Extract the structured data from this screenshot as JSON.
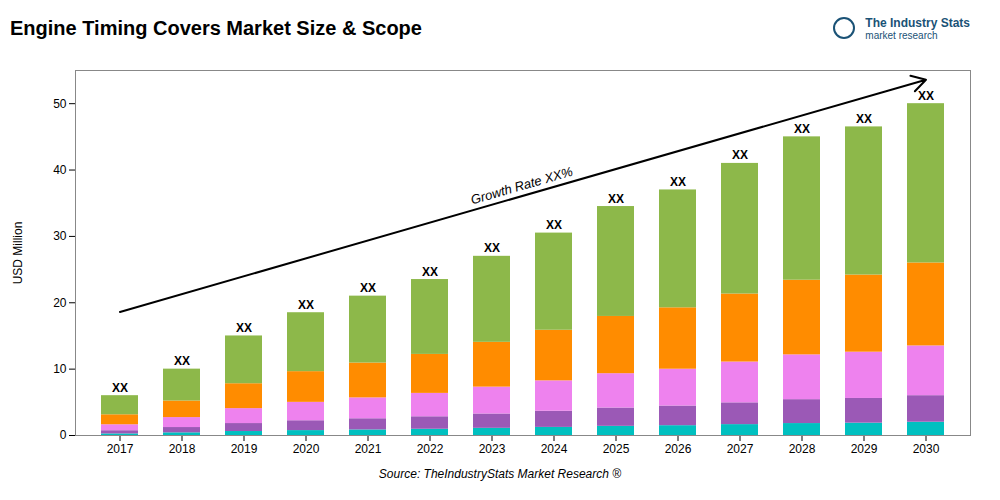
{
  "chart_data": {
    "type": "bar",
    "stacked": true,
    "title": "Engine Timing Covers Market Size & Scope",
    "ylabel": "USD Million",
    "categories": [
      "2017",
      "2018",
      "2019",
      "2020",
      "2021",
      "2022",
      "2023",
      "2024",
      "2025",
      "2026",
      "2027",
      "2028",
      "2029",
      "2030"
    ],
    "series": [
      {
        "color": "#00c0c0",
        "values": [
          0.24,
          0.4,
          0.6,
          0.74,
          0.84,
          0.94,
          1.08,
          1.22,
          1.38,
          1.48,
          1.64,
          1.8,
          1.86,
          2
        ]
      },
      {
        "color": "#9b59b6",
        "values": [
          0.48,
          0.8,
          1.2,
          1.48,
          1.68,
          1.88,
          2.16,
          2.44,
          2.76,
          2.96,
          3.28,
          3.6,
          3.72,
          4
        ]
      },
      {
        "color": "#ee82ee",
        "values": [
          0.9,
          1.5,
          2.25,
          2.775,
          3.15,
          3.525,
          4.05,
          4.575,
          5.175,
          5.55,
          6.15,
          6.75,
          6.975,
          7.5
        ]
      },
      {
        "color": "#ff8c00",
        "values": [
          1.5,
          2.5,
          3.75,
          4.625,
          5.25,
          5.875,
          6.75,
          7.625,
          8.625,
          9.25,
          10.25,
          11.25,
          11.625,
          12.5
        ]
      },
      {
        "color": "#8db84a",
        "values": [
          2.88,
          4.8,
          7.2,
          8.88,
          10.08,
          11.28,
          12.96,
          14.64,
          16.56,
          17.76,
          19.68,
          21.6,
          22.32,
          24
        ]
      }
    ],
    "bar_label": "XX",
    "arrow": {
      "start": [
        "2017",
        15
      ],
      "end": [
        "2030",
        50
      ]
    },
    "growth_label": "Growth Rate XX%",
    "ylim": [
      0,
      55
    ],
    "yticks": [
      0,
      10,
      20,
      30,
      40,
      50
    ],
    "grid": false,
    "source_text": "Source: TheIndustryStats Market Research ®",
    "logo_text": "The Industry Stats",
    "logo_subtext": "market research"
  }
}
